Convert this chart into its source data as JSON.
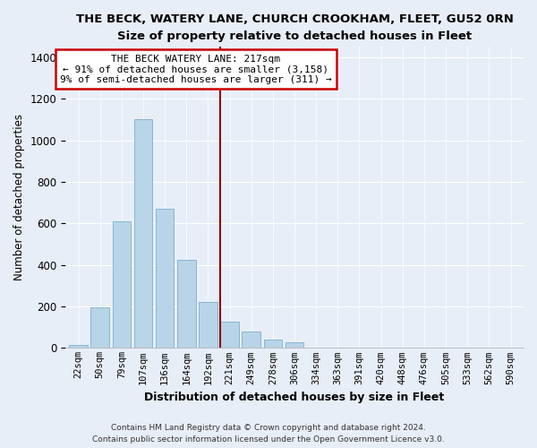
{
  "title": "THE BECK, WATERY LANE, CHURCH CROOKHAM, FLEET, GU52 0RN",
  "subtitle": "Size of property relative to detached houses in Fleet",
  "xlabel": "Distribution of detached houses by size in Fleet",
  "ylabel": "Number of detached properties",
  "bar_labels": [
    "22sqm",
    "50sqm",
    "79sqm",
    "107sqm",
    "136sqm",
    "164sqm",
    "192sqm",
    "221sqm",
    "249sqm",
    "278sqm",
    "306sqm",
    "334sqm",
    "363sqm",
    "391sqm",
    "420sqm",
    "448sqm",
    "476sqm",
    "505sqm",
    "533sqm",
    "562sqm",
    "590sqm"
  ],
  "bar_values": [
    15,
    195,
    610,
    1100,
    670,
    425,
    220,
    125,
    80,
    40,
    27,
    0,
    0,
    0,
    0,
    0,
    0,
    0,
    0,
    0,
    0
  ],
  "bar_color": "#b8d4e8",
  "bar_edge_color": "#7aafcc",
  "vline_color": "#8b0000",
  "vline_x_index": 6.575,
  "annotation_title": "THE BECK WATERY LANE: 217sqm",
  "annotation_line1": "← 91% of detached houses are smaller (3,158)",
  "annotation_line2": "9% of semi-detached houses are larger (311) →",
  "annotation_box_color": "white",
  "annotation_box_edge": "#cc0000",
  "ylim": [
    0,
    1450
  ],
  "yticks": [
    0,
    200,
    400,
    600,
    800,
    1000,
    1200,
    1400
  ],
  "footer1": "Contains HM Land Registry data © Crown copyright and database right 2024.",
  "footer2": "Contains public sector information licensed under the Open Government Licence v3.0.",
  "bg_color": "#e8eef8",
  "plot_bg_color": "#e8eef8"
}
